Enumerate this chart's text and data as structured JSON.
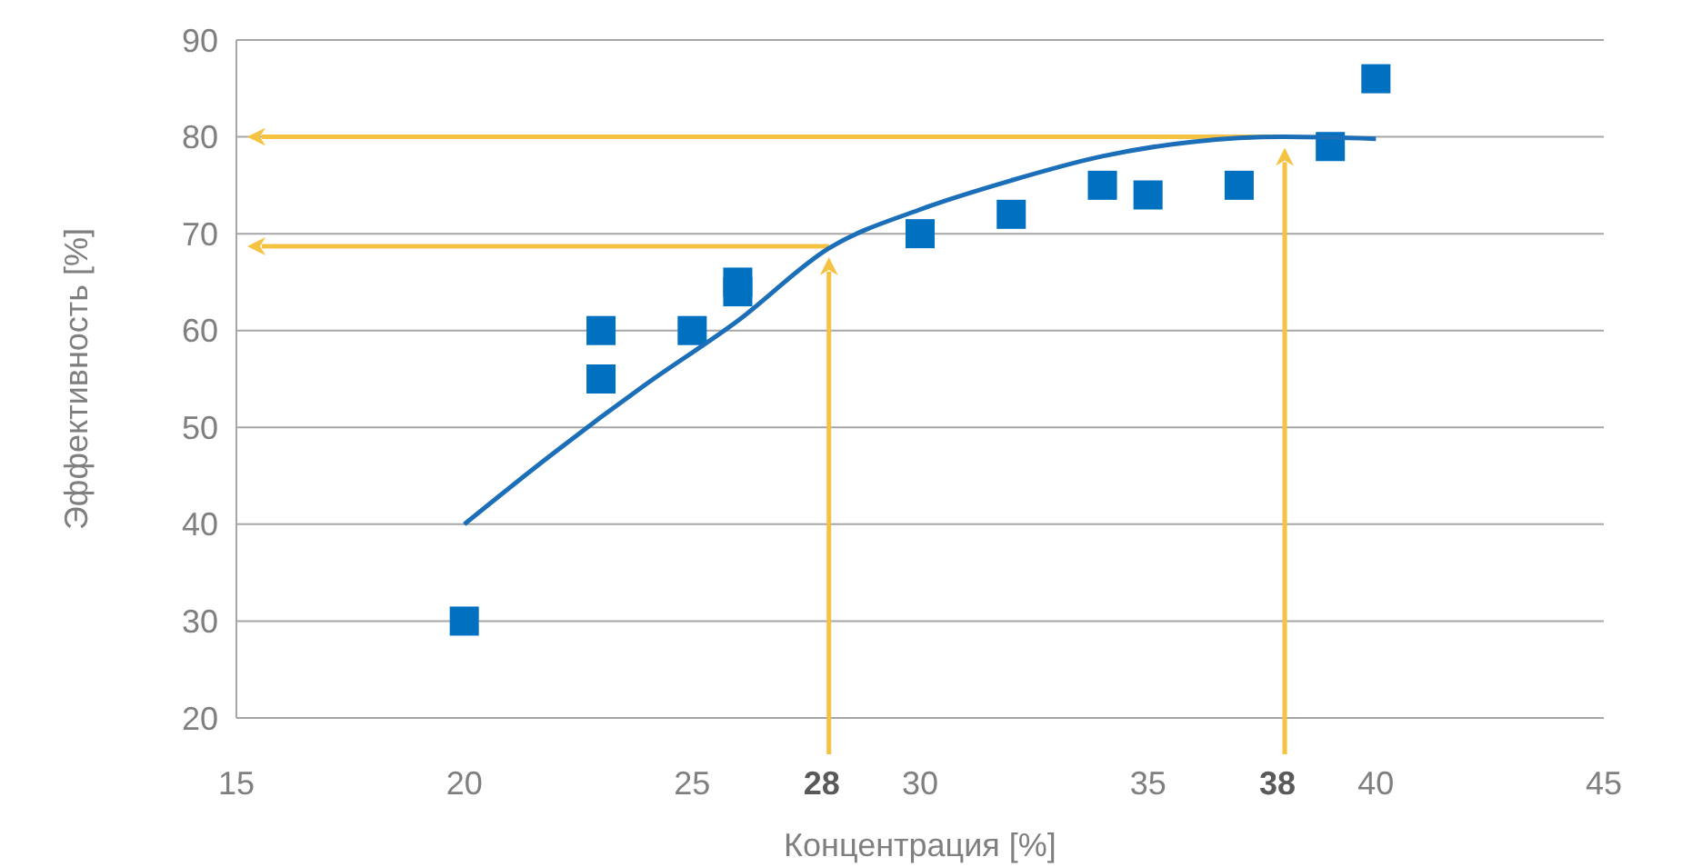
{
  "chart_data": {
    "type": "scatter",
    "xlabel": "Концентрация [%]",
    "ylabel": "Эффективность [%]",
    "xlim": [
      15,
      45
    ],
    "ylim": [
      20,
      90
    ],
    "xticks": [
      15,
      20,
      25,
      30,
      35,
      40,
      45
    ],
    "yticks": [
      20,
      30,
      40,
      50,
      60,
      70,
      80,
      90
    ],
    "grid": "y",
    "marker": "square",
    "series": [
      {
        "color": "#0070c0",
        "x": [
          20,
          23,
          23,
          25,
          26,
          26,
          30,
          32,
          34,
          35,
          37,
          39,
          40
        ],
        "values": [
          30,
          60,
          55,
          60,
          65,
          64,
          70,
          72,
          75,
          74,
          75,
          79,
          86
        ]
      },
      {
        "type": "line",
        "color": "#1a6fb8",
        "marker": "none",
        "line_style": "solid",
        "x": [
          20,
          22,
          24,
          26,
          28,
          30,
          32,
          34,
          36,
          38,
          40
        ],
        "values": [
          40,
          47.5,
          54.5,
          61,
          68.5,
          72.5,
          75.5,
          78,
          79.5,
          80,
          79.8
        ]
      }
    ],
    "ref_lines": [
      {
        "axis": "x",
        "value": 28,
        "label": "28",
        "color": "#f5c242"
      },
      {
        "axis": "y",
        "value": 68.7,
        "color": "#f5c242"
      },
      {
        "axis": "x",
        "value": 38,
        "label": "38",
        "color": "#f5c242"
      },
      {
        "axis": "y",
        "value": 80,
        "color": "#f5c242"
      }
    ]
  }
}
